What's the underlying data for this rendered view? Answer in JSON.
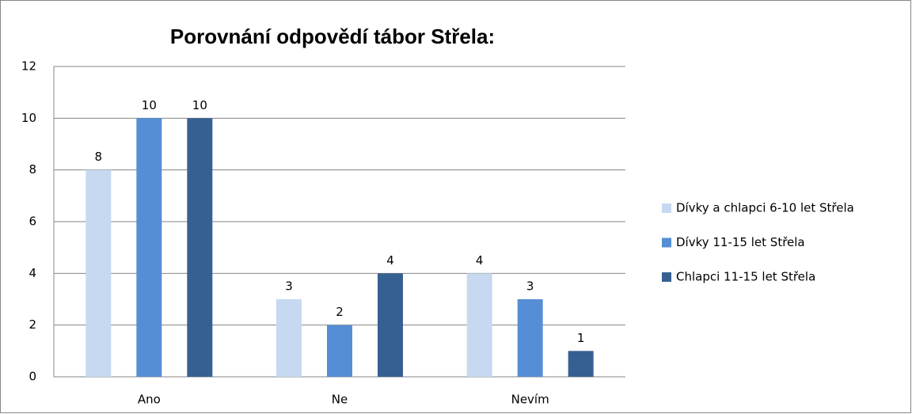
{
  "chart_data": {
    "type": "bar",
    "title": "Porovnání odpovědí tábor Střela:",
    "categories": [
      "Ano",
      "Ne",
      "Nevím"
    ],
    "series": [
      {
        "name": "Dívky a chlapci 6-10 let Střela",
        "color": "#c6d9f1",
        "values": [
          8,
          3,
          4
        ]
      },
      {
        "name": "Dívky 11-15 let Střela",
        "color": "#558ed5",
        "values": [
          10,
          2,
          3
        ]
      },
      {
        "name": "Chlapci 11-15 let Střela",
        "color": "#376092",
        "values": [
          10,
          4,
          1
        ]
      }
    ],
    "ylim": [
      0,
      12
    ],
    "yticks": [
      0,
      2,
      4,
      6,
      8,
      10,
      12
    ],
    "grid": true,
    "legend": "right"
  }
}
